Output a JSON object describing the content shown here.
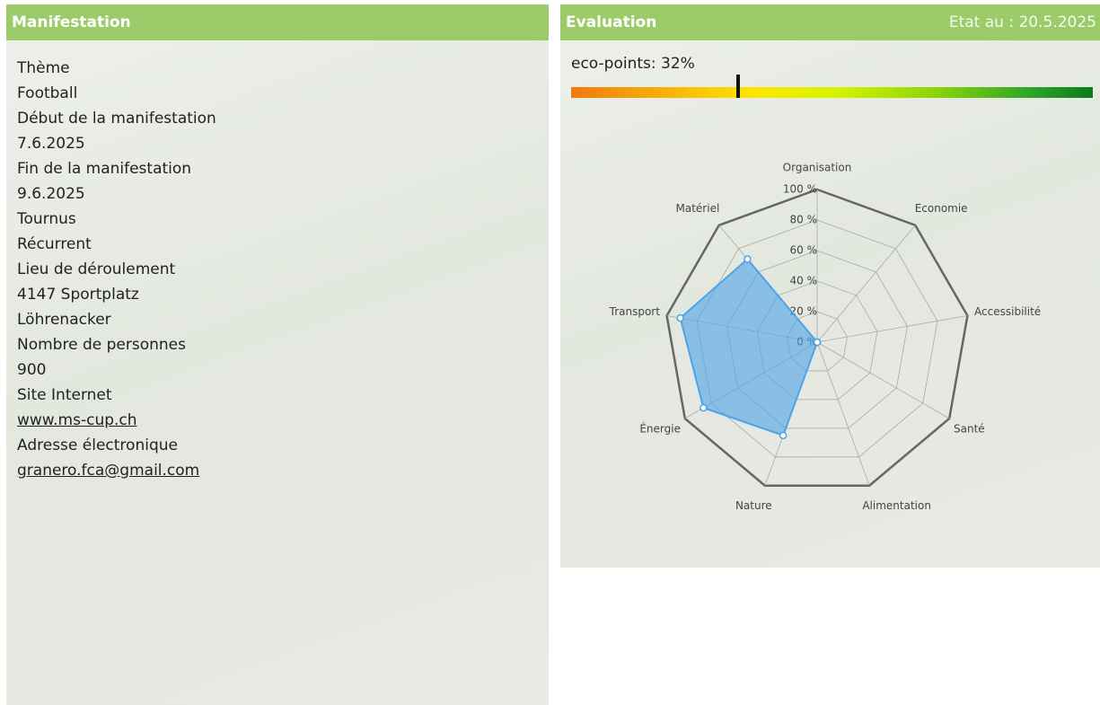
{
  "manifestation": {
    "title": "Manifestation",
    "fields": [
      {
        "label": "Thème",
        "lines": [
          "Football"
        ]
      },
      {
        "label": "Début de la manifestation",
        "lines": [
          "7.6.2025"
        ]
      },
      {
        "label": "Fin de la manifestation",
        "lines": [
          "9.6.2025"
        ]
      },
      {
        "label": "Tournus",
        "lines": [
          "Récurrent"
        ]
      },
      {
        "label": "Lieu de déroulement",
        "lines": [
          "4147 Sportplatz",
          "Löhrenacker"
        ]
      },
      {
        "label": "Nombre de personnes",
        "lines": [
          "900"
        ]
      },
      {
        "label": "Site Internet",
        "lines": [
          "www.ms-cup.ch"
        ],
        "link": true
      },
      {
        "label": "Adresse électronique",
        "lines": [
          "granero.fca@gmail.com"
        ],
        "link": true
      }
    ]
  },
  "evaluation": {
    "title": "Evaluation",
    "date": "Etat au : 20.5.2025",
    "eco_points": {
      "label": "eco-points: 32%",
      "value": 32,
      "lim": [
        0,
        100
      ]
    },
    "chart_data": {
      "type": "radar",
      "categories": [
        "Organisation",
        "Economie",
        "Accessibilité",
        "Santé",
        "Alimentation",
        "Nature",
        "Énergie",
        "Transport",
        "Matériel"
      ],
      "values": [
        0,
        0,
        0,
        0,
        0,
        65,
        86,
        91,
        71
      ],
      "color": "#4da3e8",
      "rlim": [
        0,
        100
      ],
      "rticks": [
        {
          "value": 0,
          "label": "0 %"
        },
        {
          "value": 20,
          "label": "20 %"
        },
        {
          "value": 40,
          "label": "40 %"
        },
        {
          "value": 60,
          "label": "60 %"
        },
        {
          "value": 80,
          "label": "80 %"
        },
        {
          "value": 100,
          "label": "100 %"
        }
      ]
    }
  }
}
